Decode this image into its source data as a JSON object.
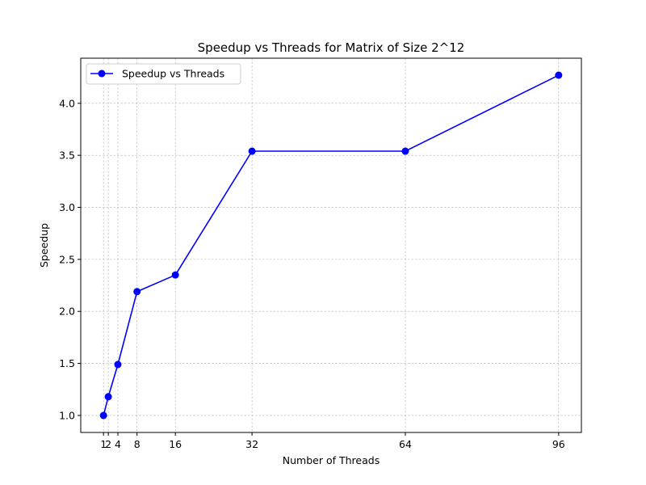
{
  "chart_data": {
    "type": "line",
    "title": "Speedup vs Threads for Matrix of Size 2^12",
    "xlabel": "Number of Threads",
    "ylabel": "Speedup",
    "x": [
      1,
      2,
      4,
      8,
      16,
      32,
      64,
      96
    ],
    "series": [
      {
        "name": "Speedup vs Threads",
        "color": "#0000ff",
        "marker": "circle",
        "values": [
          1.0,
          1.18,
          1.49,
          2.19,
          2.35,
          3.54,
          3.54,
          4.27
        ]
      }
    ],
    "xticks": [
      1,
      2,
      4,
      8,
      16,
      32,
      64,
      96
    ],
    "xtick_labels": [
      "1",
      "2",
      "4",
      "8",
      "16",
      "32",
      "64",
      "96"
    ],
    "yticks": [
      1.0,
      1.5,
      2.0,
      2.5,
      3.0,
      3.5,
      4.0
    ],
    "ytick_labels": [
      "1.0",
      "1.5",
      "2.0",
      "2.5",
      "3.0",
      "3.5",
      "4.0"
    ],
    "xlim": [
      -3.75,
      100.75
    ],
    "ylim": [
      0.8365,
      4.4335
    ],
    "grid": true,
    "legend_position": "upper-left"
  }
}
